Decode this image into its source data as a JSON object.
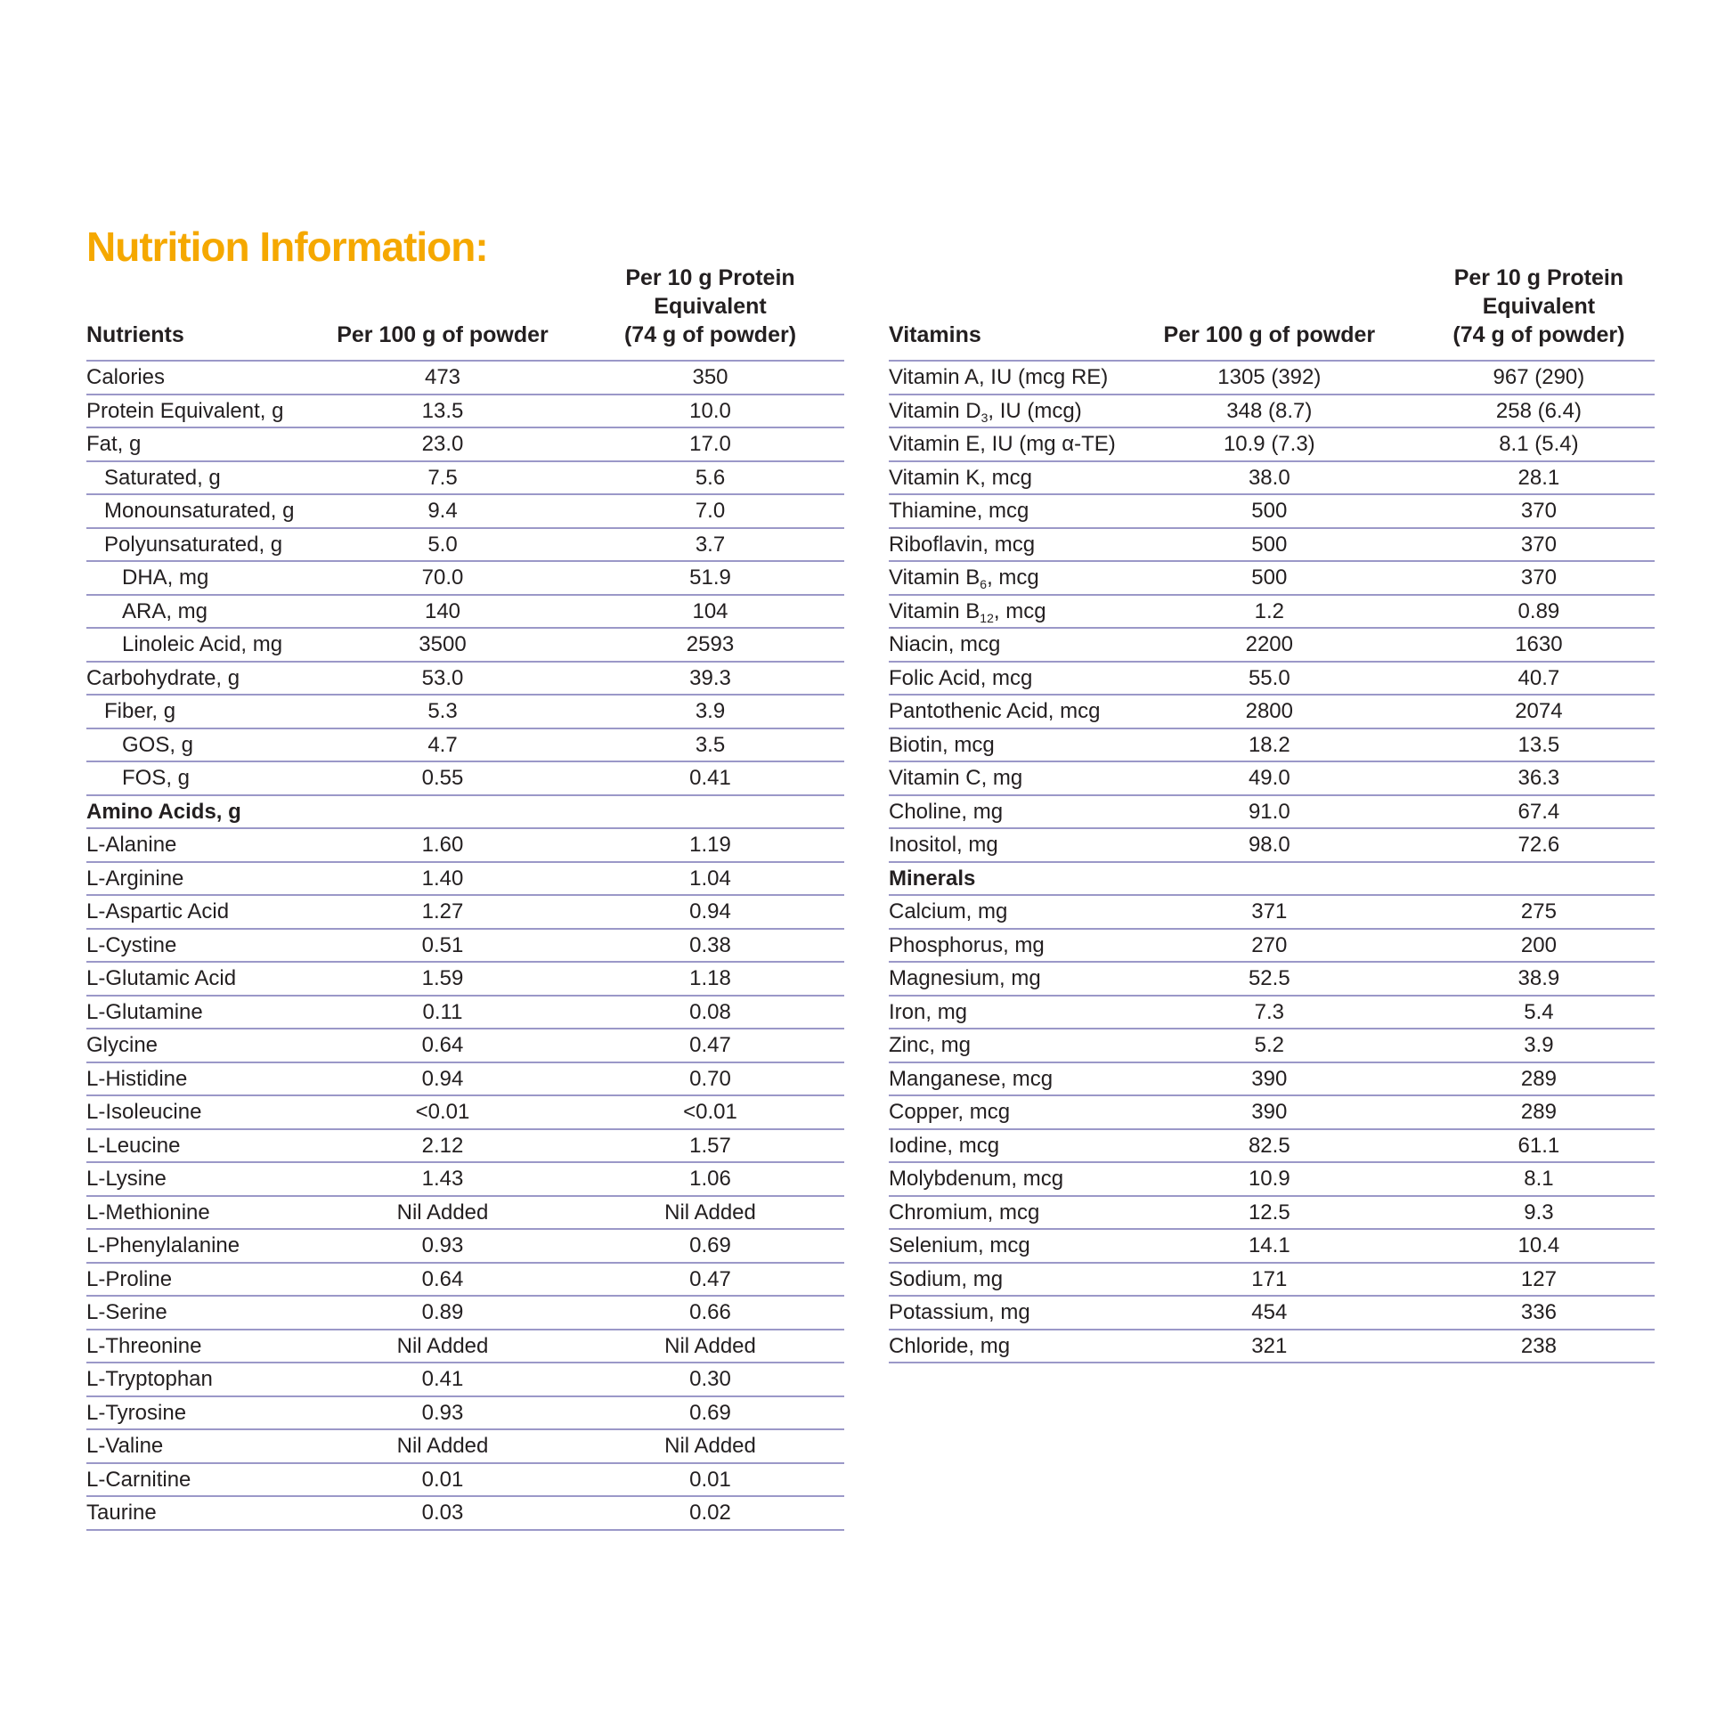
{
  "title": "Nutrition Information:",
  "colors": {
    "title": "#f5a800",
    "rule": "#9b98c8",
    "text": "#231f20"
  },
  "left_table": {
    "headers": [
      "Nutrients",
      "Per 100 g of powder",
      "Per 10 g Protein Equivalent",
      "(74 g of powder)"
    ],
    "rows": [
      {
        "label": "Calories",
        "indent": 0,
        "per100": "473",
        "per10": "350"
      },
      {
        "label": "Protein Equivalent, g",
        "indent": 0,
        "per100": "13.5",
        "per10": "10.0"
      },
      {
        "label": "Fat, g",
        "indent": 0,
        "per100": "23.0",
        "per10": "17.0"
      },
      {
        "label": "Saturated, g",
        "indent": 1,
        "per100": "7.5",
        "per10": "5.6"
      },
      {
        "label": "Monounsaturated, g",
        "indent": 1,
        "per100": "9.4",
        "per10": "7.0"
      },
      {
        "label": "Polyunsaturated, g",
        "indent": 1,
        "per100": "5.0",
        "per10": "3.7"
      },
      {
        "label": "DHA, mg",
        "indent": 2,
        "per100": "70.0",
        "per10": "51.9"
      },
      {
        "label": "ARA, mg",
        "indent": 2,
        "per100": "140",
        "per10": "104"
      },
      {
        "label": "Linoleic Acid, mg",
        "indent": 2,
        "per100": "3500",
        "per10": "2593"
      },
      {
        "label": "Carbohydrate, g",
        "indent": 0,
        "per100": "53.0",
        "per10": "39.3"
      },
      {
        "label": "Fiber, g",
        "indent": 1,
        "per100": "5.3",
        "per10": "3.9"
      },
      {
        "label": "GOS, g",
        "indent": 2,
        "per100": "4.7",
        "per10": "3.5"
      },
      {
        "label": "FOS, g",
        "indent": 2,
        "per100": "0.55",
        "per10": "0.41"
      },
      {
        "label": "Amino Acids, g",
        "section": true,
        "per100": "",
        "per10": ""
      },
      {
        "label": "L-Alanine",
        "indent": 0,
        "per100": "1.60",
        "per10": "1.19"
      },
      {
        "label": "L-Arginine",
        "indent": 0,
        "per100": "1.40",
        "per10": "1.04"
      },
      {
        "label": "L-Aspartic Acid",
        "indent": 0,
        "per100": "1.27",
        "per10": "0.94"
      },
      {
        "label": "L-Cystine",
        "indent": 0,
        "per100": "0.51",
        "per10": "0.38"
      },
      {
        "label": "L-Glutamic Acid",
        "indent": 0,
        "per100": "1.59",
        "per10": "1.18"
      },
      {
        "label": "L-Glutamine",
        "indent": 0,
        "per100": "0.11",
        "per10": "0.08"
      },
      {
        "label": "Glycine",
        "indent": 0,
        "per100": "0.64",
        "per10": "0.47"
      },
      {
        "label": "L-Histidine",
        "indent": 0,
        "per100": "0.94",
        "per10": "0.70"
      },
      {
        "label": "L-Isoleucine",
        "indent": 0,
        "per100": "<0.01",
        "per10": "<0.01"
      },
      {
        "label": "L-Leucine",
        "indent": 0,
        "per100": "2.12",
        "per10": "1.57"
      },
      {
        "label": "L-Lysine",
        "indent": 0,
        "per100": "1.43",
        "per10": "1.06"
      },
      {
        "label": "L-Methionine",
        "indent": 0,
        "per100": "Nil Added",
        "per10": "Nil Added"
      },
      {
        "label": "L-Phenylalanine",
        "indent": 0,
        "per100": "0.93",
        "per10": "0.69"
      },
      {
        "label": "L-Proline",
        "indent": 0,
        "per100": "0.64",
        "per10": "0.47"
      },
      {
        "label": "L-Serine",
        "indent": 0,
        "per100": "0.89",
        "per10": "0.66"
      },
      {
        "label": "L-Threonine",
        "indent": 0,
        "per100": "Nil Added",
        "per10": "Nil Added"
      },
      {
        "label": "L-Tryptophan",
        "indent": 0,
        "per100": "0.41",
        "per10": "0.30"
      },
      {
        "label": "L-Tyrosine",
        "indent": 0,
        "per100": "0.93",
        "per10": "0.69"
      },
      {
        "label": "L-Valine",
        "indent": 0,
        "per100": "Nil Added",
        "per10": "Nil Added"
      },
      {
        "label": "L-Carnitine",
        "indent": 0,
        "per100": "0.01",
        "per10": "0.01"
      },
      {
        "label": "Taurine",
        "indent": 0,
        "per100": "0.03",
        "per10": "0.02"
      }
    ]
  },
  "right_table": {
    "headers": [
      "Vitamins",
      "Per 100 g of powder",
      "Per 10 g Protein Equivalent",
      "(74 g of powder)"
    ],
    "rows": [
      {
        "label": "Vitamin A, IU (mcg RE)",
        "indent": 0,
        "per100": "1305 (392)",
        "per10": "967 (290)"
      },
      {
        "label": "Vitamin D",
        "sub": "3",
        "post": ", IU (mcg)",
        "indent": 0,
        "per100": "348 (8.7)",
        "per10": "258 (6.4)"
      },
      {
        "label": "Vitamin E, IU (mg α-TE)",
        "indent": 0,
        "per100": "10.9 (7.3)",
        "per10": "8.1 (5.4)"
      },
      {
        "label": "Vitamin K, mcg",
        "indent": 0,
        "per100": "38.0",
        "per10": "28.1"
      },
      {
        "label": "Thiamine, mcg",
        "indent": 0,
        "per100": "500",
        "per10": "370"
      },
      {
        "label": "Riboflavin, mcg",
        "indent": 0,
        "per100": "500",
        "per10": "370"
      },
      {
        "label": "Vitamin B",
        "sub": "6",
        "post": ", mcg",
        "indent": 0,
        "per100": "500",
        "per10": "370"
      },
      {
        "label": "Vitamin B",
        "sub": "12",
        "post": ", mcg",
        "indent": 0,
        "per100": "1.2",
        "per10": "0.89"
      },
      {
        "label": "Niacin, mcg",
        "indent": 0,
        "per100": "2200",
        "per10": "1630"
      },
      {
        "label": "Folic Acid, mcg",
        "indent": 0,
        "per100": "55.0",
        "per10": "40.7"
      },
      {
        "label": "Pantothenic Acid, mcg",
        "indent": 0,
        "per100": "2800",
        "per10": "2074"
      },
      {
        "label": "Biotin, mcg",
        "indent": 0,
        "per100": "18.2",
        "per10": "13.5"
      },
      {
        "label": "Vitamin C, mg",
        "indent": 0,
        "per100": "49.0",
        "per10": "36.3"
      },
      {
        "label": "Choline, mg",
        "indent": 0,
        "per100": "91.0",
        "per10": "67.4"
      },
      {
        "label": "Inositol, mg",
        "indent": 0,
        "per100": "98.0",
        "per10": "72.6"
      },
      {
        "label": "Minerals",
        "section": true,
        "per100": "",
        "per10": ""
      },
      {
        "label": "Calcium, mg",
        "indent": 0,
        "per100": "371",
        "per10": "275"
      },
      {
        "label": "Phosphorus, mg",
        "indent": 0,
        "per100": "270",
        "per10": "200"
      },
      {
        "label": "Magnesium, mg",
        "indent": 0,
        "per100": "52.5",
        "per10": "38.9"
      },
      {
        "label": "Iron, mg",
        "indent": 0,
        "per100": "7.3",
        "per10": "5.4"
      },
      {
        "label": "Zinc, mg",
        "indent": 0,
        "per100": "5.2",
        "per10": "3.9"
      },
      {
        "label": "Manganese, mcg",
        "indent": 0,
        "per100": "390",
        "per10": "289"
      },
      {
        "label": "Copper, mcg",
        "indent": 0,
        "per100": "390",
        "per10": "289"
      },
      {
        "label": "Iodine, mcg",
        "indent": 0,
        "per100": "82.5",
        "per10": "61.1"
      },
      {
        "label": "Molybdenum, mcg",
        "indent": 0,
        "per100": "10.9",
        "per10": "8.1"
      },
      {
        "label": "Chromium, mcg",
        "indent": 0,
        "per100": "12.5",
        "per10": "9.3"
      },
      {
        "label": "Selenium, mcg",
        "indent": 0,
        "per100": "14.1",
        "per10": "10.4"
      },
      {
        "label": "Sodium, mg",
        "indent": 0,
        "per100": "171",
        "per10": "127"
      },
      {
        "label": "Potassium, mg",
        "indent": 0,
        "per100": "454",
        "per10": "336"
      },
      {
        "label": "Chloride, mg",
        "indent": 0,
        "per100": "321",
        "per10": "238"
      }
    ]
  }
}
